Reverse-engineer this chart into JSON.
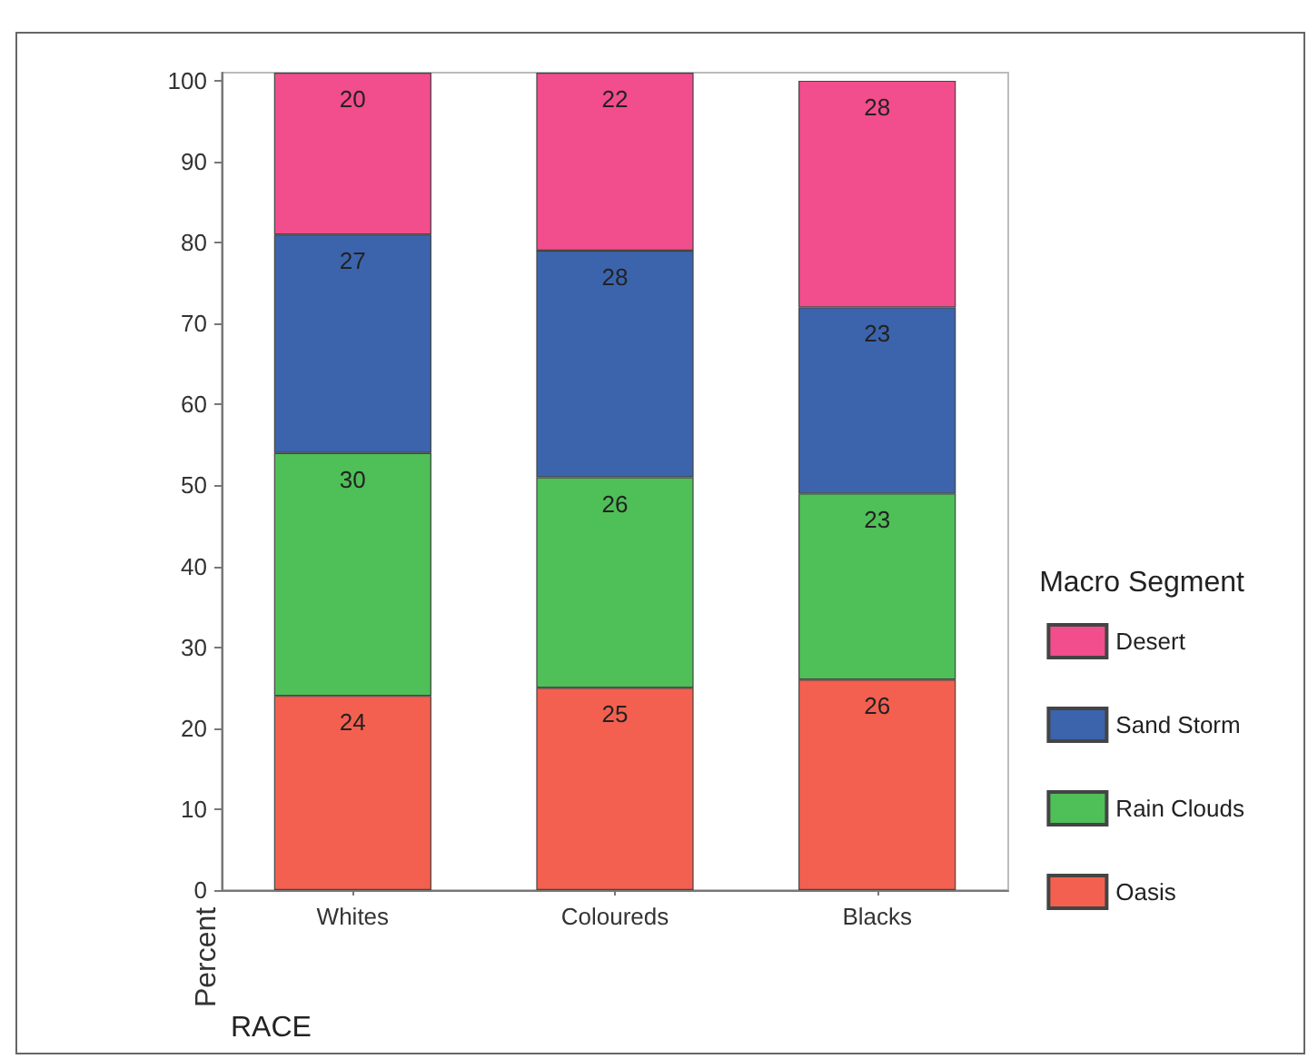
{
  "chart_data": {
    "type": "bar",
    "stacked": true,
    "xlabel": "RACE",
    "ylabel": "Percent",
    "legend_title": "Macro Segment",
    "legend": "right",
    "categories": [
      "Whites",
      "Coloureds",
      "Blacks"
    ],
    "series": [
      {
        "name": "Oasis",
        "color": "#f4604f",
        "values": [
          24,
          25,
          26
        ]
      },
      {
        "name": "Rain Clouds",
        "color": "#4fbf58",
        "values": [
          30,
          26,
          23
        ]
      },
      {
        "name": "Sand Storm",
        "color": "#3c64ad",
        "values": [
          27,
          28,
          23
        ]
      },
      {
        "name": "Desert",
        "color": "#f24d8c",
        "values": [
          20,
          22,
          28
        ]
      }
    ],
    "ylim": [
      0,
      101
    ],
    "yticks": [
      0,
      10,
      20,
      30,
      40,
      50,
      60,
      70,
      80,
      90,
      100
    ],
    "grid": false,
    "data_labels": true
  }
}
